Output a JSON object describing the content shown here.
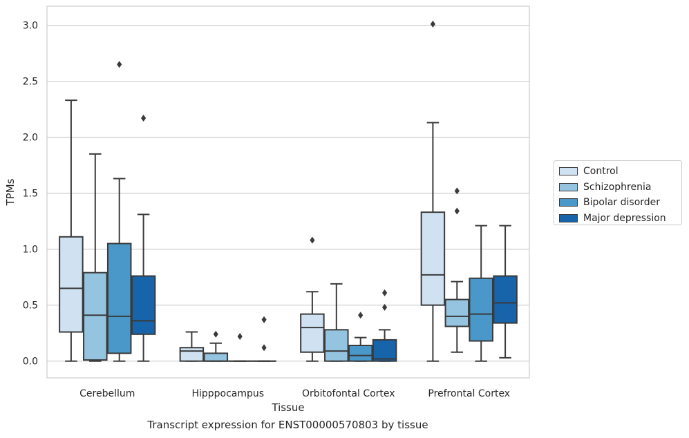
{
  "chart_data": {
    "type": "boxplot",
    "xlabel": "Tissue",
    "ylabel": "TPMs",
    "caption": "Transcript expression for ENST00000570803 by tissue",
    "ylim": [
      -0.15,
      3.17
    ],
    "yticks": [
      "0.0",
      "0.5",
      "1.0",
      "1.5",
      "2.0",
      "2.5",
      "3.0"
    ],
    "grid": "horizontal",
    "legend_position": "right",
    "categories": [
      "Cerebellum",
      "Hipppocampus",
      "Orbitofontal Cortex",
      "Prefrontal Cortex"
    ],
    "series": [
      {
        "name": "Control",
        "color": "#d0e1f2",
        "boxes": [
          {
            "min": 0.0,
            "q1": 0.26,
            "median": 0.65,
            "q3": 1.11,
            "max": 2.33,
            "outliers": []
          },
          {
            "min": 0.0,
            "q1": 0.0,
            "median": 0.09,
            "q3": 0.12,
            "max": 0.26,
            "outliers": []
          },
          {
            "min": 0.0,
            "q1": 0.08,
            "median": 0.3,
            "q3": 0.42,
            "max": 0.62,
            "outliers": [
              1.08
            ]
          },
          {
            "min": 0.0,
            "q1": 0.5,
            "median": 0.77,
            "q3": 1.33,
            "max": 2.13,
            "outliers": [
              3.01
            ]
          }
        ]
      },
      {
        "name": "Schizophrenia",
        "color": "#94c4df",
        "boxes": [
          {
            "min": 0.0,
            "q1": 0.01,
            "median": 0.41,
            "q3": 0.79,
            "max": 1.85,
            "outliers": []
          },
          {
            "min": 0.0,
            "q1": 0.0,
            "median": 0.0,
            "q3": 0.07,
            "max": 0.16,
            "outliers": [
              0.24
            ]
          },
          {
            "min": 0.0,
            "q1": 0.0,
            "median": 0.09,
            "q3": 0.28,
            "max": 0.69,
            "outliers": []
          },
          {
            "min": 0.08,
            "q1": 0.31,
            "median": 0.4,
            "q3": 0.55,
            "max": 0.71,
            "outliers": [
              1.52,
              1.34
            ]
          }
        ]
      },
      {
        "name": "Bipolar disorder",
        "color": "#4a98c9",
        "boxes": [
          {
            "min": 0.0,
            "q1": 0.07,
            "median": 0.4,
            "q3": 1.05,
            "max": 1.63,
            "outliers": [
              2.65
            ]
          },
          {
            "min": 0.0,
            "q1": 0.0,
            "median": 0.0,
            "q3": 0.0,
            "max": 0.0,
            "outliers": [
              0.22
            ]
          },
          {
            "min": 0.0,
            "q1": 0.0,
            "median": 0.05,
            "q3": 0.14,
            "max": 0.21,
            "outliers": [
              0.41
            ]
          },
          {
            "min": 0.0,
            "q1": 0.18,
            "median": 0.42,
            "q3": 0.74,
            "max": 1.21,
            "outliers": []
          }
        ]
      },
      {
        "name": "Major depression",
        "color": "#1764ab",
        "boxes": [
          {
            "min": 0.0,
            "q1": 0.24,
            "median": 0.36,
            "q3": 0.76,
            "max": 1.31,
            "outliers": [
              2.17
            ]
          },
          {
            "min": 0.0,
            "q1": 0.0,
            "median": 0.0,
            "q3": 0.0,
            "max": 0.0,
            "outliers": [
              0.37,
              0.12
            ]
          },
          {
            "min": 0.0,
            "q1": 0.0,
            "median": 0.02,
            "q3": 0.19,
            "max": 0.28,
            "outliers": [
              0.61,
              0.48
            ]
          },
          {
            "min": 0.03,
            "q1": 0.34,
            "median": 0.52,
            "q3": 0.76,
            "max": 1.21,
            "outliers": []
          }
        ]
      }
    ]
  }
}
